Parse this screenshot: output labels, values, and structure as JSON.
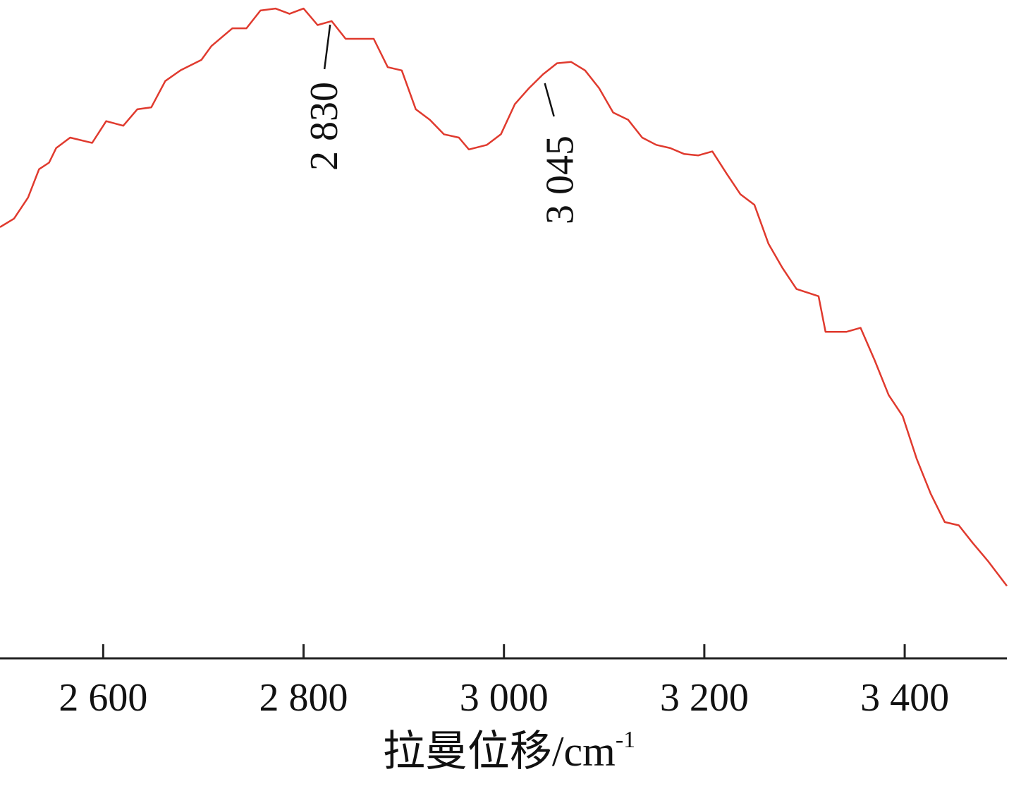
{
  "chart_data": {
    "type": "line",
    "x_label": "拉曼位移/cm",
    "x_label_superscript": "-1",
    "color": "#e03a2e",
    "xlim": [
      2497,
      3502
    ],
    "xticks": [
      {
        "value": 2600,
        "label": "2 600"
      },
      {
        "value": 2800,
        "label": "2 800"
      },
      {
        "value": 3000,
        "label": "3 000"
      },
      {
        "value": 3200,
        "label": "3 200"
      },
      {
        "value": 3400,
        "label": "3 400"
      }
    ],
    "ylim": [
      0,
      100
    ],
    "x": [
      2497,
      2511,
      2525,
      2536,
      2546,
      2553,
      2567,
      2589,
      2603,
      2620,
      2634,
      2648,
      2662,
      2677,
      2698,
      2708,
      2729,
      2743,
      2757,
      2772,
      2786,
      2800,
      2814,
      2828,
      2842,
      2856,
      2870,
      2884,
      2898,
      2912,
      2926,
      2940,
      2955,
      2965,
      2983,
      2997,
      3011,
      3025,
      3039,
      3053,
      3067,
      3081,
      3095,
      3109,
      3124,
      3138,
      3152,
      3166,
      3180,
      3194,
      3208,
      3222,
      3236,
      3250,
      3264,
      3278,
      3292,
      3314,
      3321,
      3342,
      3356,
      3370,
      3384,
      3398,
      3412,
      3426,
      3440,
      3454,
      3468,
      3483,
      3502
    ],
    "values": [
      65.5,
      66.8,
      70.0,
      74.3,
      75.3,
      77.5,
      79.1,
      78.3,
      81.6,
      80.9,
      83.4,
      83.7,
      87.7,
      89.3,
      90.9,
      93.0,
      95.7,
      95.7,
      98.4,
      98.7,
      97.9,
      98.7,
      96.2,
      96.8,
      94.1,
      94.1,
      94.1,
      89.8,
      89.3,
      83.4,
      81.8,
      79.6,
      79.1,
      77.3,
      78.0,
      79.6,
      84.2,
      86.6,
      88.7,
      90.4,
      90.6,
      89.3,
      86.6,
      82.9,
      81.8,
      79.1,
      78.0,
      77.5,
      76.6,
      76.4,
      77.0,
      73.7,
      70.5,
      68.9,
      63.0,
      59.3,
      56.1,
      55.0,
      49.6,
      49.6,
      50.2,
      45.3,
      40.0,
      36.8,
      30.3,
      25.0,
      20.7,
      20.2,
      17.5,
      14.8,
      11.0
    ],
    "annotations": [
      {
        "text": "2 830",
        "x": 2830
      },
      {
        "text": "3 045",
        "x": 3045
      }
    ]
  }
}
